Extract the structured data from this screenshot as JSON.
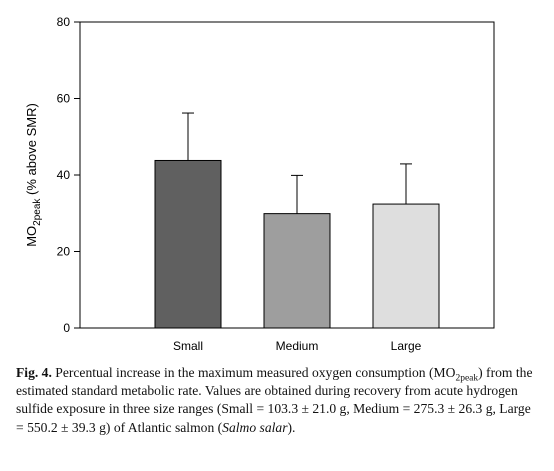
{
  "chart_data": {
    "type": "bar",
    "categories": [
      "Small",
      "Medium",
      "Large"
    ],
    "values": [
      43.8,
      29.9,
      32.4
    ],
    "errors": [
      12.4,
      10.0,
      10.5
    ],
    "bar_colors": [
      "#606060",
      "#9e9e9e",
      "#dedede"
    ],
    "ylabel_main": "MO",
    "ylabel_num": "2peak",
    "ylabel_rest": " (% above SMR)",
    "xlabel": "",
    "ylim": [
      0,
      80
    ],
    "yticks": [
      0,
      20,
      40,
      60,
      80
    ],
    "grid": false,
    "legend": "none"
  },
  "caption": {
    "label": "Fig. 4.",
    "text_1": " Percentual increase in the maximum measured oxygen consumption (MO",
    "sub": "2peak",
    "text_2": ") from the estimated standard metabolic rate. Values are obtained during recovery from acute hydrogen sulfide exposure in three size ranges (Small = 103.3 ± 21.0 g, Medium = 275.3 ± 26.3 g, Large = 550.2 ± 39.3 g) of Atlantic salmon (",
    "species": "Salmo salar",
    "text_3": ")."
  }
}
